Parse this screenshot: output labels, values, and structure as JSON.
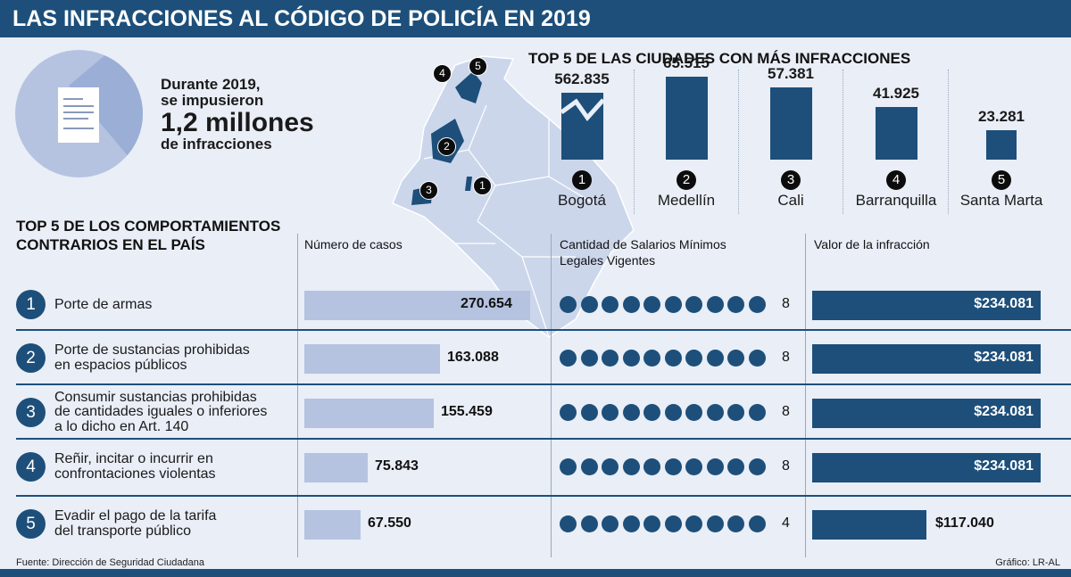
{
  "title": "LAS INFRACCIONES AL CÓDIGO DE POLICÍA EN 2019",
  "intro": {
    "line1": "Durante 2019,",
    "line2": "se impusieron",
    "big": "1,2 millones",
    "line3": "de infracciones"
  },
  "colors": {
    "navy": "#1d4f7a",
    "light_bar": "#b5c3e1",
    "background": "#e9eef7",
    "map": "#ccd6eb"
  },
  "chart_data": [
    {
      "type": "bar",
      "title": "TOP 5 DE LAS CIUDADES CON MÁS INFRACCIONES",
      "categories": [
        "Bogotá",
        "Medellín",
        "Cali",
        "Barranquilla",
        "Santa Marta"
      ],
      "ranks": [
        "1",
        "2",
        "3",
        "4",
        "5"
      ],
      "values": [
        562835,
        65515,
        57381,
        41925,
        23281
      ],
      "value_labels": [
        "562.835",
        "65.515",
        "57.381",
        "41.925",
        "23.281"
      ],
      "axis_break_on_first_bar": true
    },
    {
      "type": "bar",
      "orientation": "horizontal",
      "title": "TOP 5 DE LOS COMPORTAMIENTOS CONTRARIOS EN EL PAÍS",
      "column_headers": [
        "Número de casos",
        "Cantidad de Salarios Mínimos Legales Vigentes",
        "Valor de la infracción"
      ],
      "ranks": [
        "1",
        "2",
        "3",
        "4",
        "5"
      ],
      "categories": [
        [
          "Porte de armas"
        ],
        [
          "Porte de sustancias prohibidas",
          " en espacios públicos"
        ],
        [
          "Consumir sustancias prohibidas",
          "de cantidades iguales o inferiores",
          "a lo dicho en Art. 140"
        ],
        [
          "Reñir, incitar o incurrir en",
          "confrontaciones violentas"
        ],
        [
          "Evadir el pago de la tarifa",
          "del transporte público"
        ]
      ],
      "cases": [
        270654,
        163088,
        155459,
        75843,
        67550
      ],
      "case_labels": [
        "270.654",
        "163.088",
        "155.459",
        "75.843",
        "67.550"
      ],
      "smlv_labels": [
        "8",
        "8",
        "8",
        "8",
        "4"
      ],
      "smlv_dots": 10,
      "fines": [
        234081,
        234081,
        234081,
        234081,
        117040
      ],
      "fine_labels": [
        "$234.081",
        "$234.081",
        "$234.081",
        "$234.081",
        "$117.040"
      ]
    }
  ],
  "map_markers": [
    "1",
    "2",
    "3",
    "4",
    "5"
  ],
  "footer": {
    "source": "Fuente: Dirección de Seguridad Ciudadana",
    "credit": "Gráfico: LR-AL"
  }
}
